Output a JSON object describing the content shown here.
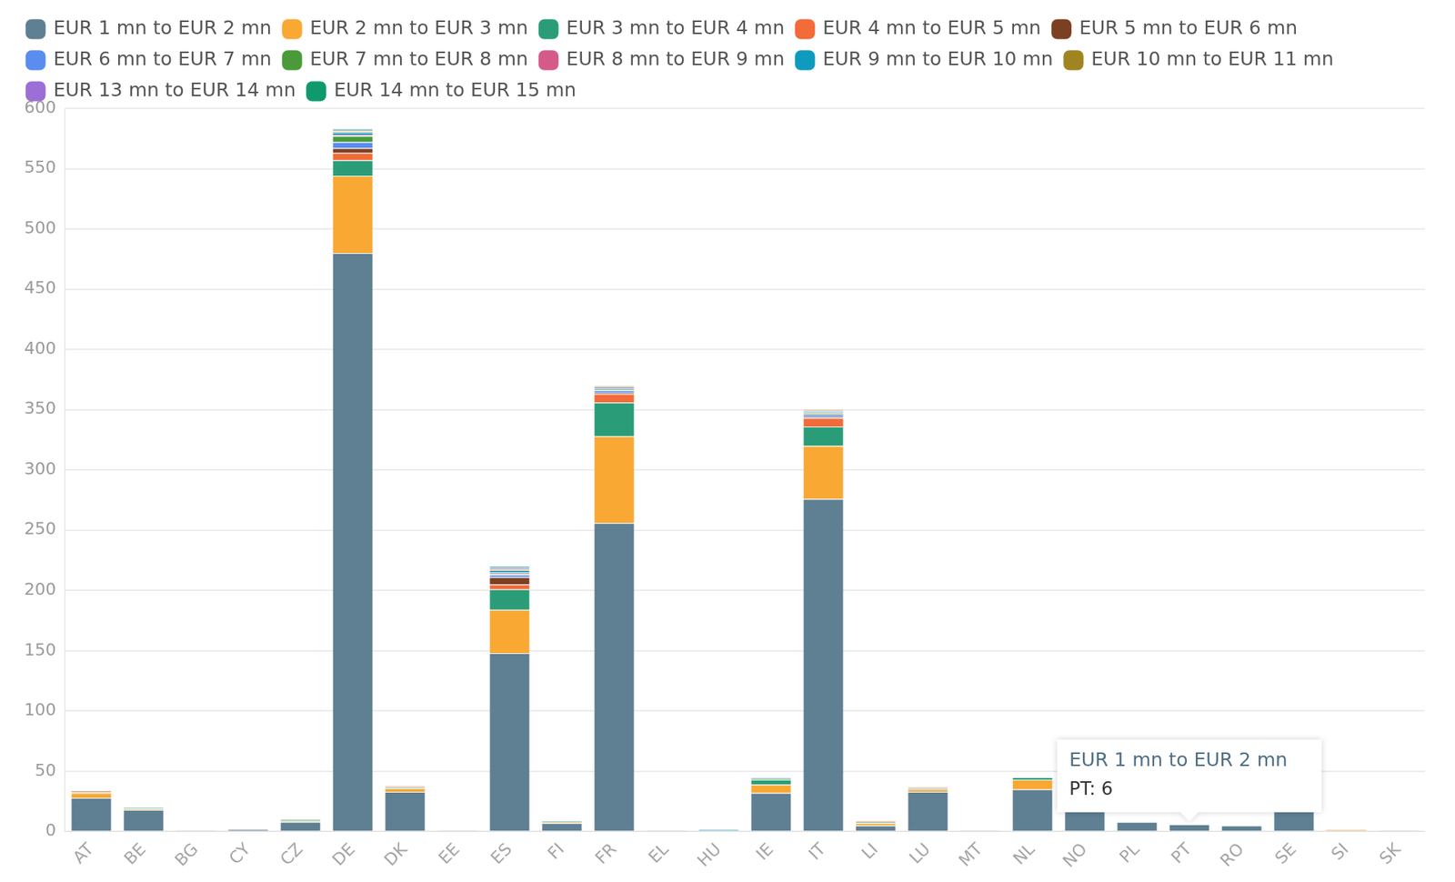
{
  "chart_data": {
    "type": "bar",
    "stacked": true,
    "grid": true,
    "legend": "top-left",
    "categories": [
      "AT",
      "BE",
      "BG",
      "CY",
      "CZ",
      "DE",
      "DK",
      "EE",
      "ES",
      "FI",
      "FR",
      "EL",
      "HU",
      "IE",
      "IT",
      "LI",
      "LU",
      "MT",
      "NL",
      "NO",
      "PL",
      "PT",
      "RO",
      "SE",
      "SI",
      "SK"
    ],
    "ylim": [
      0,
      600
    ],
    "yticks": [
      0,
      50,
      100,
      150,
      200,
      250,
      300,
      350,
      400,
      450,
      500,
      550,
      600
    ],
    "annotations": [
      {
        "x": "PT",
        "text": [
          "EUR 1 mn to EUR 2 mn",
          "PT: 6"
        ]
      }
    ],
    "series": [
      {
        "name": "EUR 1 mn to EUR 2 mn",
        "color": "#5f7f93",
        "values": [
          28,
          18,
          1,
          2,
          8,
          480,
          33,
          1,
          148,
          7,
          256,
          1,
          1,
          32,
          276,
          5,
          33,
          1,
          35,
          22,
          8,
          6,
          5,
          22,
          1,
          1
        ]
      },
      {
        "name": "EUR 2 mn to EUR 3 mn",
        "color": "#f9a834",
        "values": [
          4,
          1,
          0,
          0,
          1,
          64,
          3,
          0,
          36,
          1,
          72,
          0,
          0,
          7,
          44,
          2,
          2,
          0,
          8,
          2,
          0,
          0,
          0,
          2,
          1,
          0
        ]
      },
      {
        "name": "EUR 3 mn to EUR 4 mn",
        "color": "#2a9d78",
        "values": [
          1,
          1,
          0,
          0,
          1,
          13,
          1,
          0,
          17,
          1,
          28,
          0,
          0,
          4,
          16,
          1,
          1,
          0,
          2,
          0,
          0,
          0,
          0,
          0,
          0,
          0
        ]
      },
      {
        "name": "EUR 4 mn to EUR 5 mn",
        "color": "#f26b38",
        "values": [
          1,
          0,
          0,
          0,
          0,
          6,
          1,
          0,
          4,
          0,
          7,
          0,
          0,
          0,
          7,
          1,
          1,
          0,
          0,
          0,
          0,
          0,
          0,
          0,
          0,
          0
        ]
      },
      {
        "name": "EUR 5 mn to EUR 6 mn",
        "color": "#7b3f22",
        "values": [
          0,
          0,
          0,
          0,
          0,
          4,
          0,
          0,
          6,
          0,
          1,
          0,
          0,
          0,
          1,
          0,
          0,
          0,
          0,
          0,
          0,
          0,
          0,
          0,
          0,
          0
        ]
      },
      {
        "name": "EUR 6 mn to EUR 7 mn",
        "color": "#5b8def",
        "values": [
          0,
          0,
          0,
          0,
          0,
          5,
          0,
          0,
          2,
          0,
          2,
          0,
          0,
          0,
          2,
          0,
          0,
          0,
          0,
          0,
          0,
          0,
          0,
          0,
          0,
          0
        ]
      },
      {
        "name": "EUR 7 mn to EUR 8 mn",
        "color": "#4a9a3a",
        "values": [
          0,
          0,
          0,
          0,
          0,
          5,
          0,
          0,
          1,
          0,
          1,
          0,
          0,
          1,
          1,
          0,
          0,
          0,
          0,
          0,
          0,
          0,
          0,
          0,
          0,
          0
        ]
      },
      {
        "name": "EUR 8 mn to EUR 9 mn",
        "color": "#d45a8a",
        "values": [
          0,
          0,
          0,
          0,
          0,
          1,
          0,
          0,
          1,
          0,
          1,
          0,
          0,
          0,
          1,
          0,
          0,
          0,
          0,
          0,
          0,
          0,
          0,
          0,
          0,
          0
        ]
      },
      {
        "name": "EUR 9 mn to EUR 10 mn",
        "color": "#0e9bbf",
        "values": [
          0,
          0,
          0,
          0,
          0,
          2,
          0,
          0,
          2,
          0,
          1,
          0,
          1,
          1,
          1,
          0,
          0,
          0,
          0,
          0,
          0,
          0,
          0,
          0,
          0,
          0
        ]
      },
      {
        "name": "EUR 10 mn to EUR 11 mn",
        "color": "#a08420",
        "values": [
          0,
          0,
          0,
          0,
          0,
          1,
          0,
          0,
          1,
          0,
          1,
          0,
          0,
          0,
          1,
          0,
          0,
          0,
          0,
          0,
          0,
          0,
          0,
          0,
          0,
          0
        ]
      },
      {
        "name": "EUR 13 mn to EUR 14 mn",
        "color": "#9b6fd6",
        "values": [
          0,
          0,
          0,
          0,
          0,
          1,
          0,
          0,
          1,
          0,
          0,
          0,
          0,
          0,
          0,
          0,
          0,
          0,
          0,
          0,
          0,
          0,
          0,
          0,
          0,
          0
        ]
      },
      {
        "name": "EUR 14 mn to EUR 15 mn",
        "color": "#0f9a6e",
        "values": [
          0,
          0,
          0,
          0,
          0,
          1,
          0,
          0,
          1,
          0,
          0,
          0,
          0,
          0,
          0,
          0,
          0,
          0,
          0,
          0,
          0,
          0,
          0,
          0,
          0,
          0
        ]
      }
    ]
  }
}
